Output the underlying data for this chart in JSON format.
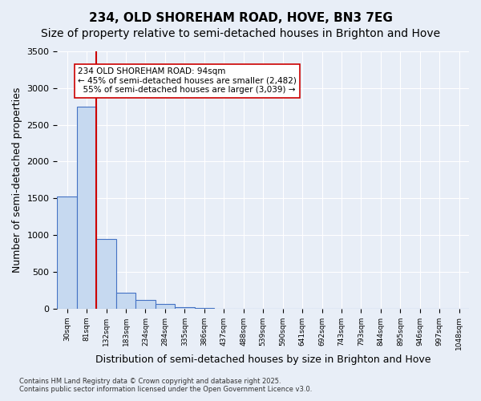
{
  "title_line1": "234, OLD SHOREHAM ROAD, HOVE, BN3 7EG",
  "title_line2": "Size of property relative to semi-detached houses in Brighton and Hove",
  "xlabel": "Distribution of semi-detached houses by size in Brighton and Hove",
  "ylabel": "Number of semi-detached properties",
  "bar_values": [
    1520,
    2750,
    950,
    210,
    120,
    60,
    20,
    5,
    2,
    1,
    1,
    0,
    0,
    0,
    0,
    0,
    0,
    0,
    0,
    0,
    0
  ],
  "bar_labels": [
    "30sqm",
    "81sqm",
    "132sqm",
    "183sqm",
    "234sqm",
    "284sqm",
    "335sqm",
    "386sqm",
    "437sqm",
    "488sqm",
    "539sqm",
    "590sqm",
    "641sqm",
    "692sqm",
    "743sqm",
    "793sqm",
    "844sqm",
    "895sqm",
    "946sqm",
    "997sqm",
    "1048sqm"
  ],
  "bar_color": "#c6d9f0",
  "bar_edge_color": "#4472c4",
  "property_label": "234 OLD SHOREHAM ROAD: 94sqm",
  "pct_smaller": 45,
  "pct_larger": 55,
  "count_smaller": 2482,
  "count_larger": 3039,
  "vline_x": 1.5,
  "ylim": [
    0,
    3500
  ],
  "yticks": [
    0,
    500,
    1000,
    1500,
    2000,
    2500,
    3000,
    3500
  ],
  "annotation_box_color": "#ffffff",
  "annotation_box_edge": "#cc0000",
  "vline_color": "#cc0000",
  "bg_color": "#e8eef7",
  "footer_line1": "Contains HM Land Registry data © Crown copyright and database right 2025.",
  "footer_line2": "Contains public sector information licensed under the Open Government Licence v3.0.",
  "title_fontsize": 11,
  "subtitle_fontsize": 10,
  "axis_label_fontsize": 9,
  "tick_fontsize": 8
}
